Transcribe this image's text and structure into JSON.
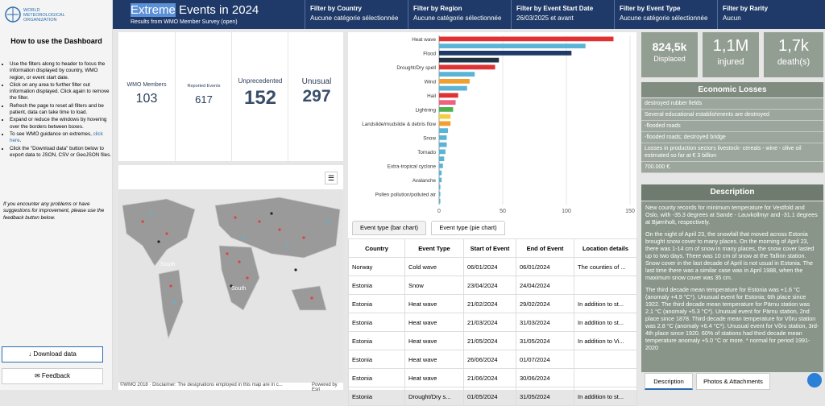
{
  "sidebar": {
    "logo": "WORLD METEOROLOGICAL ORGANIZATION",
    "heading": "How to use the Dashboard",
    "bullets": [
      {
        "text": "Use the filters along to header to focus the information displayed by country, WMO region, or event start date."
      },
      {
        "text": "Click on any area to further filter out information displayed. Click again to remove the filter."
      },
      {
        "text": "Refresh the page to reset all filters and be patient, data can take time to load."
      },
      {
        "text": "Expand or reduce the windows by hovering over the borders between boxes."
      },
      {
        "text": "To see WMO guidance on extremes,",
        "link": "click here",
        "after": "."
      },
      {
        "text": "Click the \"Download data\" button below to export data to JSON, CSV or GeoJSON files."
      }
    ],
    "note": "If you encounter any problems or have suggestions for improvement, please use the feedback button below.",
    "download": "Download data",
    "feedback": "Feedback"
  },
  "header": {
    "title_selected": "Extreme",
    "title": "Events in 2024",
    "subtitle": "Results from WMO Member Survey (open)",
    "filters": [
      {
        "label": "Filter by Country",
        "value": "Aucune catégorie sélectionnée"
      },
      {
        "label": "Filter by Region",
        "value": "Aucune catégorie sélectionnée"
      },
      {
        "label": "Filter by Event Start Date",
        "value": "26/03/2025 et avant"
      },
      {
        "label": "Filter by Event Type",
        "value": "Aucune catégorie sélectionnée"
      },
      {
        "label": "Filter by Rarity",
        "value": "Aucun"
      }
    ]
  },
  "stats": [
    {
      "label": "WMO Members",
      "value": 103
    },
    {
      "label": "Reported Events",
      "value": 617
    },
    {
      "label": "Unprecedented",
      "value": 152
    },
    {
      "label": "Unusual",
      "value": 297
    }
  ],
  "map": {
    "footer": "©WMO 2018 · Disclaimer: The designations employed in this map are in c...",
    "powered": "Powered by Esri",
    "labels": [
      "South",
      "South"
    ]
  },
  "chart_data": {
    "type": "bar",
    "orientation": "horizontal",
    "categories": [
      "Heat wave",
      null,
      "Flood",
      null,
      "Drought/Dry spell",
      null,
      "Wind",
      null,
      "Hail",
      null,
      "Lightning",
      null,
      "Landslide/mudslide & debris flow",
      null,
      "Snow",
      null,
      "Tornado",
      null,
      "Extra-tropical cyclone",
      null,
      "Avalanche",
      null,
      "Pollen pollution/polluted air",
      null
    ],
    "values": [
      137,
      115,
      104,
      47,
      44,
      28,
      24,
      22,
      15,
      13,
      11,
      9,
      9,
      7,
      6,
      6,
      5,
      4,
      3,
      2,
      2,
      1,
      1,
      1
    ],
    "colors": [
      "#e03232",
      "#5ab4d6",
      "#1f3a68",
      "#243246",
      "#e03232",
      "#5ab4d6",
      "#f0a030",
      "#5ab4d6",
      "#e03232",
      "#f06080",
      "#50b050",
      "#f0d040",
      "#f0a030",
      "#5ab4d6",
      "#5ab4d6",
      "#5ab4d6",
      "#5ab4d6",
      "#5ab4d6",
      "#5ab4d6",
      "#5ab4d6",
      "#5ab4d6",
      "#5ab4d6",
      "#5ab4d6",
      "#5ab4d6"
    ],
    "xlim": [
      0,
      150
    ],
    "xticks": [
      0,
      50,
      100,
      150
    ],
    "grid": true
  },
  "tabs": [
    "Event type (bar chart)",
    "Event type (pie chart)"
  ],
  "table": {
    "columns": [
      "Country",
      "Event Type",
      "Start of Event",
      "End of Event",
      "Location details"
    ],
    "rows": [
      [
        "Norway",
        "Cold wave",
        "06/01/2024",
        "06/01/2024",
        "The counties of ..."
      ],
      [
        "Estonia",
        "Snow",
        "23/04/2024",
        "24/04/2024",
        null
      ],
      [
        "Estonia",
        "Heat wave",
        "21/02/2024",
        "29/02/2024",
        "In addition to st..."
      ],
      [
        "Estonia",
        "Heat wave",
        "21/03/2024",
        "31/03/2024",
        "In addition to st..."
      ],
      [
        "Estonia",
        "Heat wave",
        "21/05/2024",
        "31/05/2024",
        "In addition to Vi..."
      ],
      [
        "Estonia",
        "Heat wave",
        "26/06/2024",
        "01/07/2024",
        null
      ],
      [
        "Estonia",
        "Heat wave",
        "21/06/2024",
        "30/06/2024",
        null
      ],
      [
        "Estonia",
        "Drought/Dry s...",
        "01/05/2024",
        "31/05/2024",
        "In addition to st..."
      ]
    ]
  },
  "impacts": [
    {
      "value": "824,5k",
      "label": "Displaced"
    },
    {
      "value": "1,1M",
      "label": "injured"
    },
    {
      "value": "1,7k",
      "label": "death(s)"
    }
  ],
  "losses": {
    "title": "Economic Losses",
    "items": [
      "destroyed rubber fields",
      "Several educational establishments are destroyed",
      "-flooded roads",
      "-flooded roads; destroyed bridge",
      "Losses in production sectors livestock- cereals - wine - olive oil estimated so far at € 3 billion",
      "700.000 €."
    ]
  },
  "description": {
    "title": "Description",
    "paragraphs": [
      "New county records for minimum temperature for Vestfold and Oslo, with -35.3 degrees at Sande - Lauvkollmyr and -31.1 degrees at Bjørnholt, respectively.",
      "On the night of April 23, the snowfall that moved across Estonia brought snow cover to many places. On the morning of April 23, there was 1-14 cm of snow in many places, the snow cover lasted up to two days. There was 10 cm of snow at the Tallinn station. Snow cover in the last decade of April is not usual in Estonia. The last time there was a similar case was in April 1988, when the maximum snow cover was 35 cm.",
      "The third decade mean temperature for Estonia was +1.6 °C (anomaly +4.9 °C*). Unusual event for Estonia; 6th place since 1922. The third decade mean temperature for Pärnu station was 2.1 °C (anomaly +5.3 °C*). Unusual event for Pärnu station, 2nd place since 1878. Third decade mean temperature for Võru station was 2.8 °C (anomaly +6.4 °C*). Unusual event for Võru station, 3rd-4th place since 1920. 60% of stations had third decade mean temperature anomaly +5.0 °C or more. * normal for period 1991-2020"
    ],
    "tabs": [
      "Description",
      "Photos & Attachments"
    ]
  }
}
